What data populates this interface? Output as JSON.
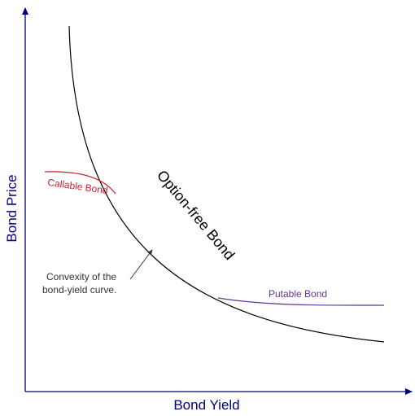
{
  "diagram": {
    "x_axis_label": "Bond Yield",
    "y_axis_label": "Bond Price",
    "curves": {
      "option_free": "Option-free Bond",
      "callable": "Callable Bond",
      "putable": "Putable Bond"
    },
    "annotation": {
      "line1": "Convexity of the",
      "line2": "bond-yield curve."
    },
    "colors": {
      "axis": "#000080",
      "axis_label": "#000080",
      "option_free": "#000000",
      "callable": "#cc2233",
      "putable": "#663399",
      "annotation": "#333333"
    }
  }
}
